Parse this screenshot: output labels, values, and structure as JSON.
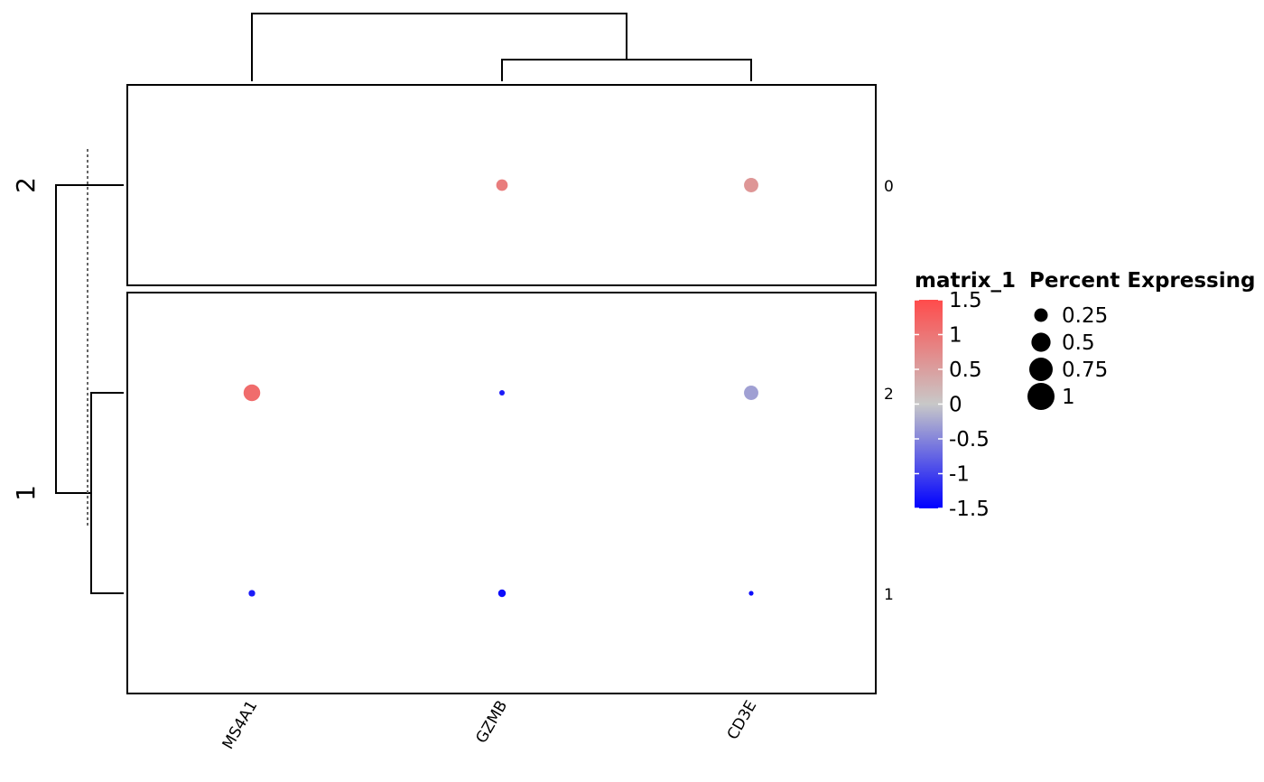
{
  "chart_data": {
    "type": "dot-heatmap",
    "columns": [
      "MS4A1",
      "GZMB",
      "CD3E"
    ],
    "row_slices": [
      {
        "label": "2",
        "rows": [
          "0"
        ]
      },
      {
        "label": "1",
        "rows": [
          "2",
          "1"
        ]
      }
    ],
    "points": [
      {
        "row": "0",
        "col": "MS4A1",
        "value": null,
        "percent": null
      },
      {
        "row": "0",
        "col": "GZMB",
        "value": 0.9,
        "percent": 0.18
      },
      {
        "row": "0",
        "col": "CD3E",
        "value": 0.6,
        "percent": 0.28
      },
      {
        "row": "2",
        "col": "MS4A1",
        "value": 1.1,
        "percent": 0.38
      },
      {
        "row": "2",
        "col": "GZMB",
        "value": -1.3,
        "percent": 0.04
      },
      {
        "row": "2",
        "col": "CD3E",
        "value": -0.3,
        "percent": 0.28
      },
      {
        "row": "1",
        "col": "MS4A1",
        "value": -1.3,
        "percent": 0.06
      },
      {
        "row": "1",
        "col": "GZMB",
        "value": -1.4,
        "percent": 0.08
      },
      {
        "row": "1",
        "col": "CD3E",
        "value": -1.4,
        "percent": 0.03
      }
    ],
    "color_legend": {
      "title": "matrix_1",
      "ticks": [
        "1.5",
        "1",
        "0.5",
        "0",
        "-0.5",
        "-1",
        "-1.5"
      ],
      "range": [
        -1.5,
        1.5
      ],
      "colors": {
        "low": "#0000FF",
        "mid": "#C8C8C8",
        "high": "#FF4B4B"
      }
    },
    "size_legend": {
      "title": "Percent Expressing",
      "entries": [
        {
          "label": "0.25",
          "value": 0.25
        },
        {
          "label": "0.5",
          "value": 0.5
        },
        {
          "label": "0.75",
          "value": 0.75
        },
        {
          "label": "1",
          "value": 1
        }
      ]
    }
  }
}
